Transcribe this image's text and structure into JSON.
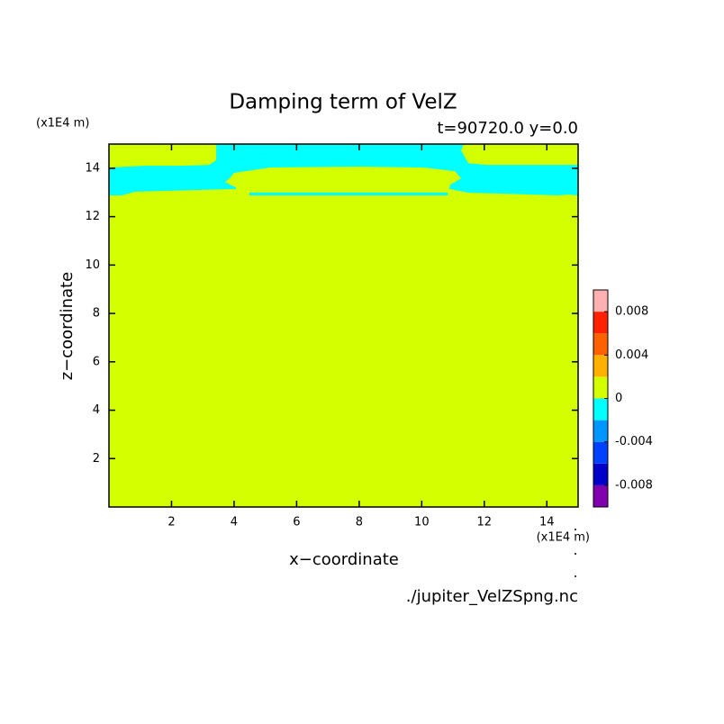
{
  "chart_data": {
    "type": "contour",
    "title": "Damping term of VelZ",
    "subtitle": "t=90720.0 y=0.0",
    "x_label": "x−coordinate",
    "y_label": "z−coordinate",
    "x_unit": "(x1E4 m)",
    "y_unit": "(x1E4 m)",
    "source": "./jupiter_VelZSpng.nc",
    "xlim": [
      0,
      15
    ],
    "ylim": [
      0,
      15
    ],
    "xticks": [
      2,
      4,
      6,
      8,
      10,
      12,
      14
    ],
    "yticks": [
      2,
      4,
      6,
      8,
      10,
      12,
      14
    ],
    "regions": [
      {
        "color": "#d4ff00",
        "x": [
          0,
          15,
          15,
          0
        ],
        "y": [
          0,
          0,
          15,
          15
        ]
      },
      {
        "color": "#00ffff",
        "x": [
          0,
          0,
          1.12,
          2.27,
          3.2,
          3.43,
          3.43,
          11.34,
          11.26,
          11.49,
          12.06,
          15,
          15,
          14.66,
          14.37,
          12.64,
          11.49,
          10.91,
          4.0,
          3.94,
          0.84,
          0.4
        ],
        "y": [
          12.88,
          14.03,
          14.1,
          14.1,
          14.14,
          14.33,
          15,
          15,
          14.73,
          14.21,
          14.14,
          14.14,
          12.88,
          12.91,
          12.88,
          12.95,
          12.99,
          13.14,
          13.14,
          13.14,
          13.03,
          12.88
        ]
      },
      {
        "color": "#d4ff00",
        "x": [
          4.06,
          3.71,
          3.86,
          4.0,
          5.15,
          8.03,
          10.05,
          11.06,
          11.26,
          10.91,
          10.86,
          4.06
        ],
        "y": [
          13.21,
          13.43,
          13.58,
          13.81,
          14.03,
          14.07,
          14.03,
          13.88,
          13.58,
          13.32,
          13.03,
          13.03
        ]
      },
      {
        "color": "#00ffff",
        "x": [
          4.49,
          10.83,
          10.83,
          4.49
        ],
        "y": [
          13.0,
          13.0,
          12.88,
          12.88
        ]
      }
    ],
    "colorbar": {
      "lim": [
        -0.01,
        0.01
      ],
      "ticks": [
        -0.008,
        -0.004,
        0,
        0.004,
        0.008
      ],
      "colors": [
        "#8000b0",
        "#0000c8",
        "#0040ff",
        "#0096ff",
        "#00ffff",
        "#d4ff00",
        "#ffb000",
        "#ff6000",
        "#ff2000",
        "#ffb0b0"
      ]
    }
  }
}
